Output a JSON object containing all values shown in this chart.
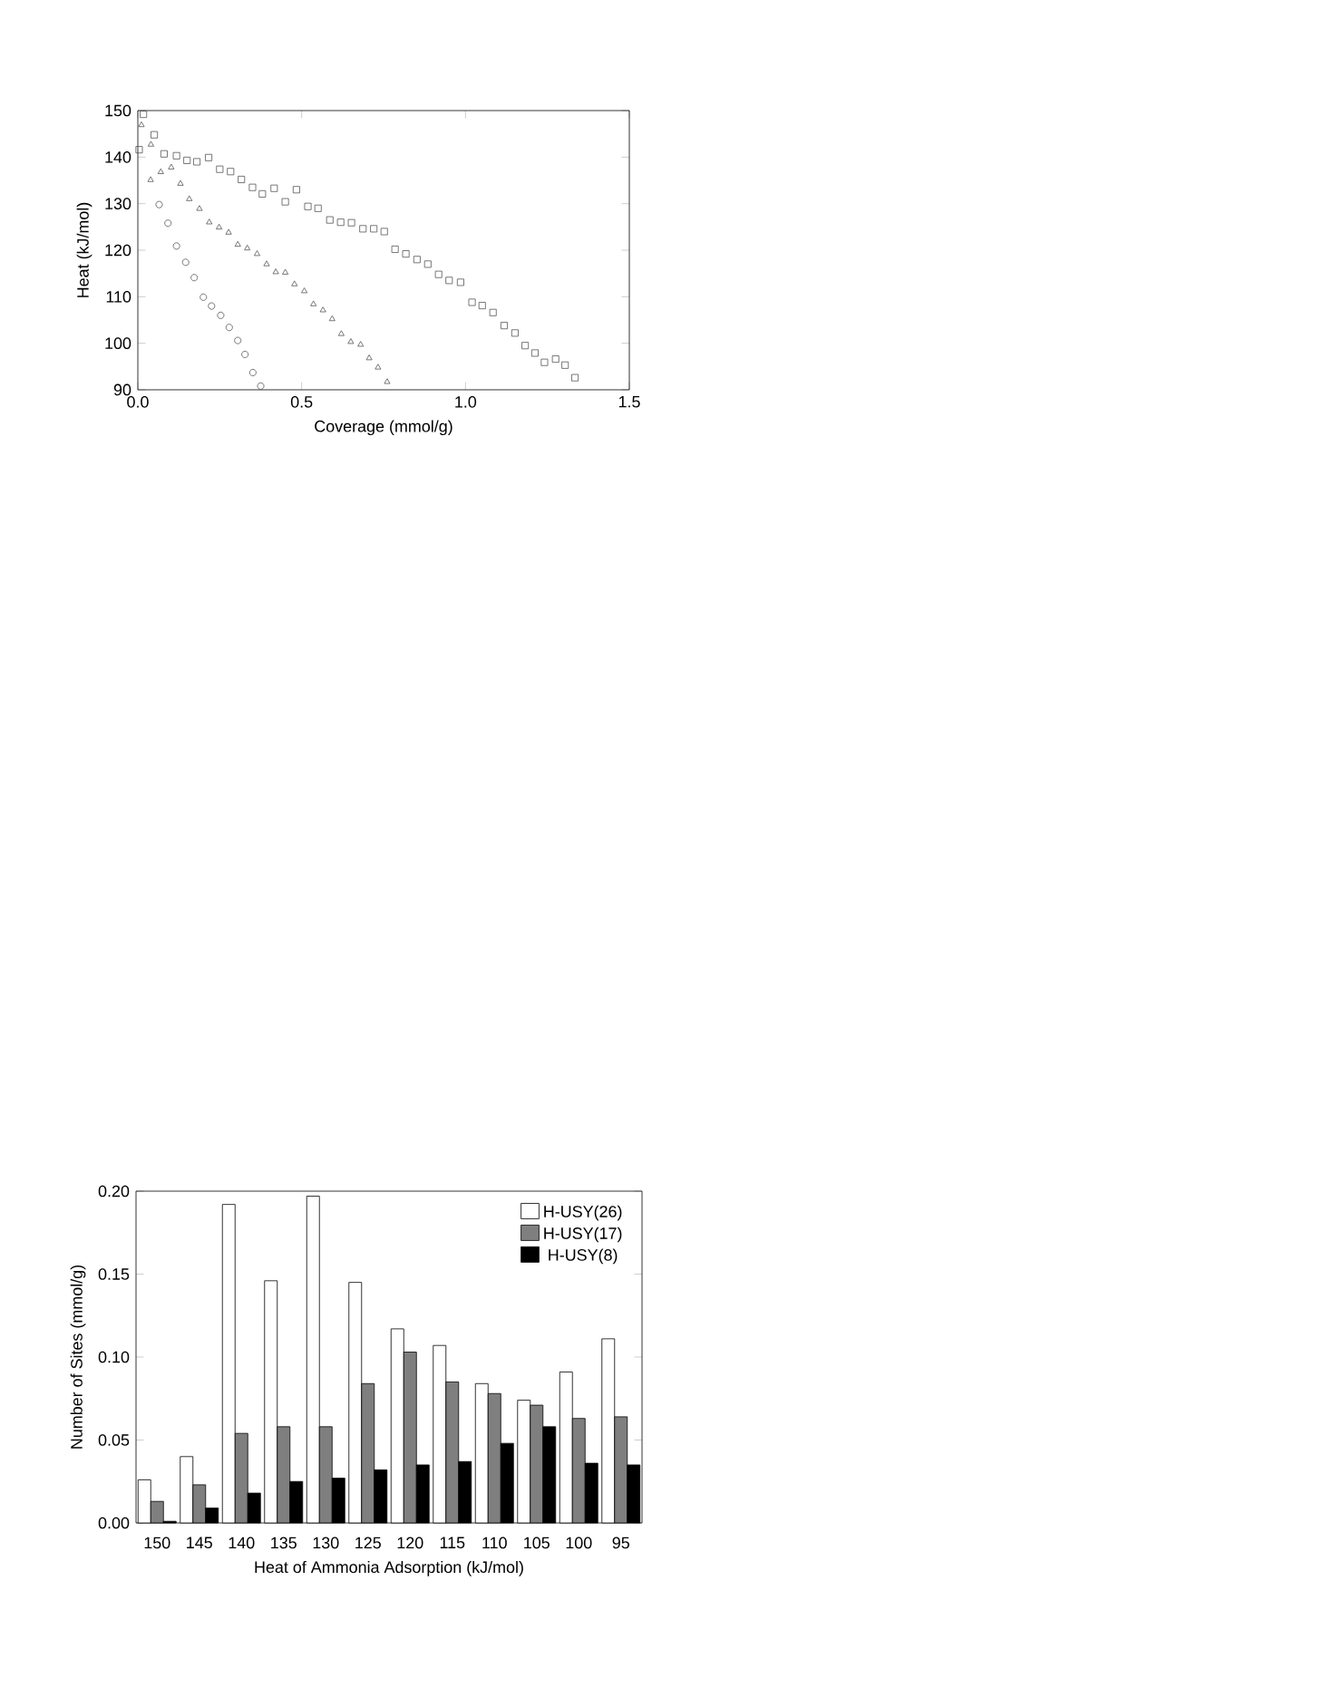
{
  "chart_data": [
    {
      "type": "scatter",
      "xlabel": "Coverage  (mmol/g)",
      "ylabel": "Heat  (kJ/mol)",
      "xlim": [
        0,
        1.5
      ],
      "ylim": [
        90,
        150
      ],
      "xticks": [
        {
          "value": 0,
          "label": "0.0"
        },
        {
          "value": 0.5,
          "label": "0.5"
        },
        {
          "value": 1,
          "label": "1.0"
        },
        {
          "value": 1.5,
          "label": "1.5"
        }
      ],
      "yticks": [
        90,
        100,
        110,
        120,
        130,
        140,
        150
      ],
      "series": [
        {
          "color": "#555555",
          "marker": "square",
          "x": [
            0.017,
            0.004,
            0.05,
            0.08,
            0.118,
            0.15,
            0.18,
            0.216,
            0.25,
            0.283,
            0.316,
            0.35,
            0.38,
            0.416,
            0.45,
            0.484,
            0.519,
            0.55,
            0.586,
            0.619,
            0.652,
            0.687,
            0.72,
            0.752,
            0.785,
            0.818,
            0.852,
            0.885,
            0.918,
            0.95,
            0.985,
            1.02,
            1.051,
            1.084,
            1.118,
            1.151,
            1.182,
            1.212,
            1.241,
            1.275,
            1.304,
            1.334
          ],
          "values": [
            149.2,
            141.6,
            144.8,
            140.7,
            140.3,
            139.3,
            139.0,
            139.9,
            137.4,
            136.9,
            135.2,
            133.5,
            132.1,
            133.3,
            130.4,
            133.0,
            129.4,
            129.0,
            126.5,
            126.0,
            125.9,
            124.6,
            124.6,
            124.0,
            120.2,
            119.2,
            118.0,
            117.0,
            114.8,
            113.5,
            113.1,
            108.8,
            108.1,
            106.6,
            103.8,
            102.2,
            99.5,
            97.9,
            95.9,
            96.6,
            95.3,
            92.6
          ]
        },
        {
          "color": "#555555",
          "marker": "triangle",
          "x": [
            0.011,
            0.04,
            0.039,
            0.07,
            0.102,
            0.13,
            0.157,
            0.188,
            0.218,
            0.248,
            0.277,
            0.305,
            0.334,
            0.364,
            0.393,
            0.421,
            0.45,
            0.478,
            0.508,
            0.536,
            0.565,
            0.593,
            0.621,
            0.65,
            0.68,
            0.706,
            0.733,
            0.761
          ],
          "values": [
            146.9,
            142.7,
            135.1,
            136.8,
            137.8,
            134.3,
            131.0,
            128.9,
            126.0,
            124.9,
            123.8,
            121.2,
            120.4,
            119.2,
            117.0,
            115.3,
            115.2,
            112.7,
            111.2,
            108.4,
            107.1,
            105.2,
            102.0,
            100.3,
            99.7,
            96.8,
            94.8,
            91.7
          ]
        },
        {
          "color": "#555555",
          "marker": "circle",
          "x": [
            0.065,
            0.092,
            0.118,
            0.146,
            0.172,
            0.2,
            0.225,
            0.253,
            0.279,
            0.305,
            0.327,
            0.351,
            0.375
          ],
          "values": [
            129.8,
            125.8,
            120.9,
            117.4,
            114.1,
            109.9,
            108.0,
            106.0,
            103.4,
            100.6,
            97.6,
            93.7,
            90.8
          ]
        }
      ]
    },
    {
      "type": "bar",
      "xlabel": "Heat of Ammonia Adsorption (kJ/mol)",
      "ylabel": "Number of Sites (mmol/g)",
      "ylim": [
        0,
        0.2
      ],
      "yticks": [
        {
          "value": 0,
          "label": "0.00"
        },
        {
          "value": 0.05,
          "label": "0.05"
        },
        {
          "value": 0.1,
          "label": "0.10"
        },
        {
          "value": 0.15,
          "label": "0.15"
        },
        {
          "value": 0.2,
          "label": "0.20"
        }
      ],
      "categories": [
        "150",
        "145",
        "140",
        "135",
        "130",
        "125",
        "120",
        "115",
        "110",
        "105",
        "100",
        "95"
      ],
      "legend": "top right",
      "series": [
        {
          "name": "H-USY(26)",
          "color": "#ffffff",
          "values": [
            0.026,
            0.04,
            0.192,
            0.146,
            0.197,
            0.145,
            0.117,
            0.107,
            0.084,
            0.074,
            0.091,
            0.111
          ]
        },
        {
          "name": "H-USY(17)",
          "color": "#7f7f7f",
          "values": [
            0.013,
            0.023,
            0.054,
            0.058,
            0.058,
            0.084,
            0.103,
            0.085,
            0.078,
            0.071,
            0.063,
            0.064
          ]
        },
        {
          "name": "H-USY(8)",
          "color": "#000000",
          "values": [
            0.001,
            0.009,
            0.018,
            0.025,
            0.027,
            0.032,
            0.035,
            0.037,
            0.048,
            0.058,
            0.036,
            0.035
          ]
        }
      ]
    }
  ]
}
